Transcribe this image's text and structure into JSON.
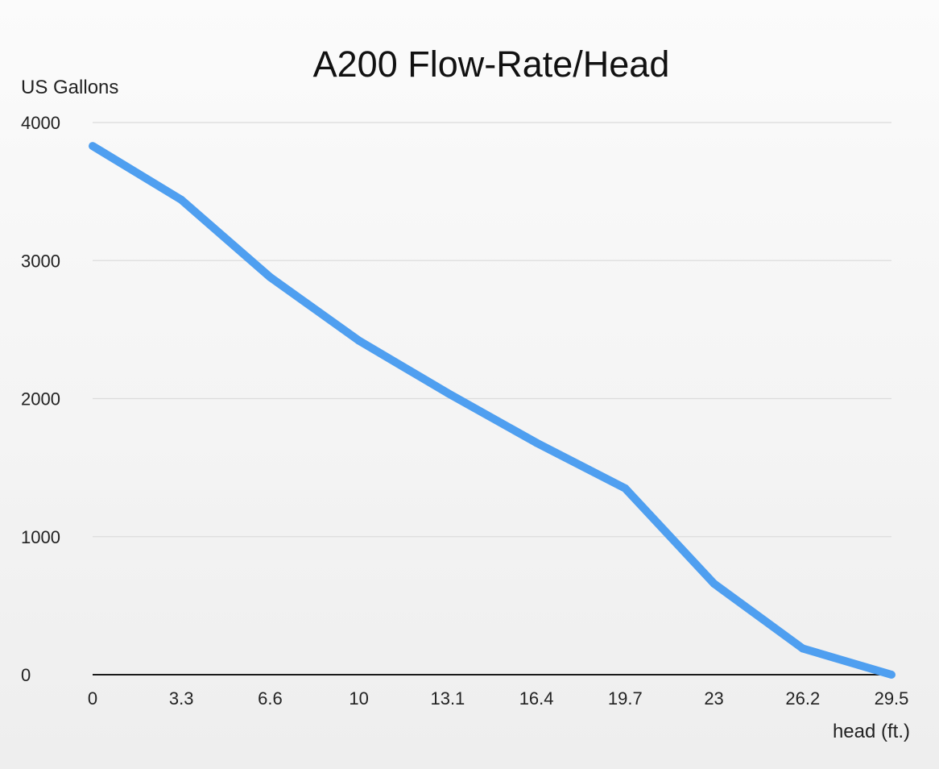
{
  "chart_data": {
    "type": "line",
    "title": "A200 Flow-Rate/Head",
    "xlabel": "head (ft.)",
    "ylabel": "US Gallons",
    "categories": [
      "0",
      "3.3",
      "6.6",
      "10",
      "13.1",
      "16.4",
      "19.7",
      "23",
      "26.2",
      "29.5"
    ],
    "series": [
      {
        "values": [
          3830,
          3440,
          2880,
          2420,
          2040,
          1680,
          1350,
          660,
          190,
          0
        ]
      }
    ],
    "ylim": [
      0,
      4000
    ],
    "yticks": [
      0,
      1000,
      2000,
      3000,
      4000
    ],
    "ytick_labels": [
      "0",
      "1000",
      "2000",
      "3000",
      "4000"
    ],
    "grid": true,
    "legend": "none",
    "line_color": "#4f9ff0"
  }
}
